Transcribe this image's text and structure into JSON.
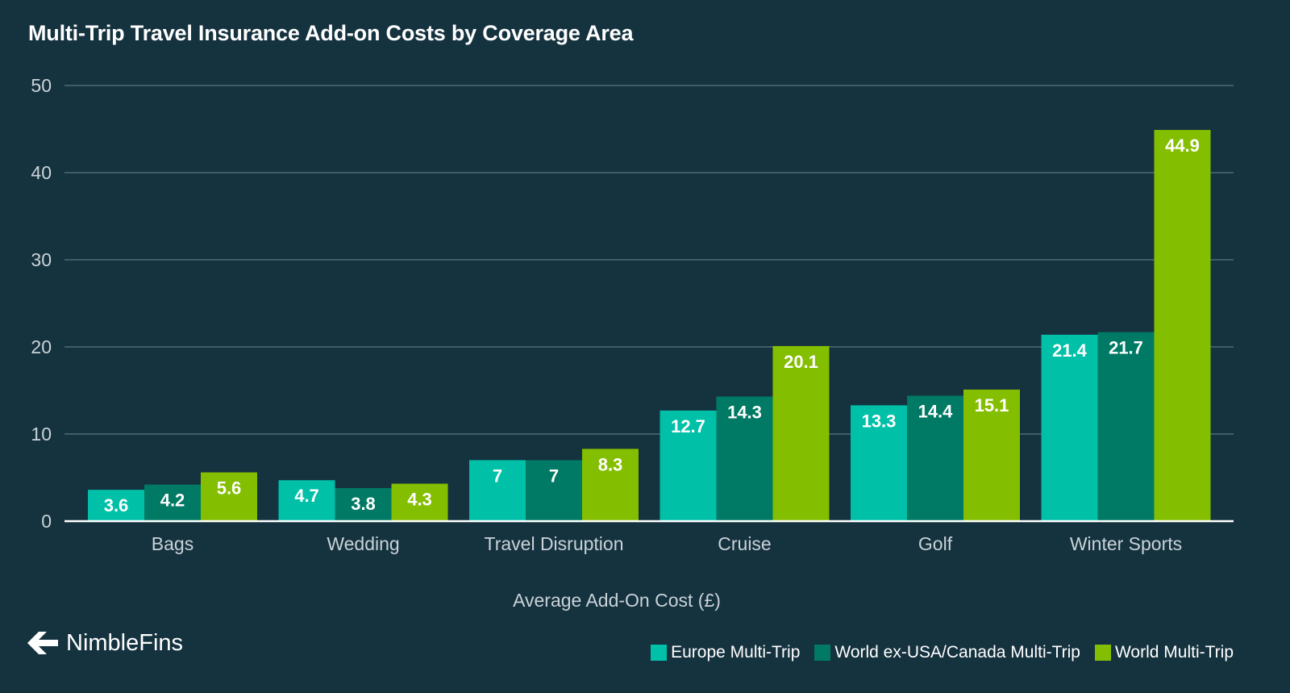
{
  "chart_data": {
    "type": "bar",
    "title": "Multi-Trip Travel Insurance Add-on Costs by Coverage Area",
    "xlabel": "Average Add-On Cost (£)",
    "ylabel": "",
    "ylim": [
      0,
      50
    ],
    "yticks": [
      0,
      10,
      20,
      30,
      40,
      50
    ],
    "grid": true,
    "legend_position": "bottom-right",
    "categories": [
      "Bags",
      "Wedding",
      "Travel Disruption",
      "Cruise",
      "Golf",
      "Winter Sports"
    ],
    "series": [
      {
        "name": "Europe Multi-Trip",
        "color": "#00c0a8",
        "values": [
          3.6,
          4.7,
          7,
          12.7,
          13.3,
          21.4
        ]
      },
      {
        "name": "World ex-USA/Canada Multi-Trip",
        "color": "#007a64",
        "values": [
          4.2,
          3.8,
          7,
          14.3,
          14.4,
          21.7
        ]
      },
      {
        "name": "World Multi-Trip",
        "color": "#84be00",
        "values": [
          5.6,
          4.3,
          8.3,
          20.1,
          15.1,
          44.9
        ]
      }
    ]
  },
  "branding": {
    "logo_text": "NimbleFins",
    "logo_icon": "arrow-logo-icon"
  },
  "colors": {
    "background": "#15323f",
    "gridline": "#5a7581",
    "baseline": "#ffffff"
  }
}
